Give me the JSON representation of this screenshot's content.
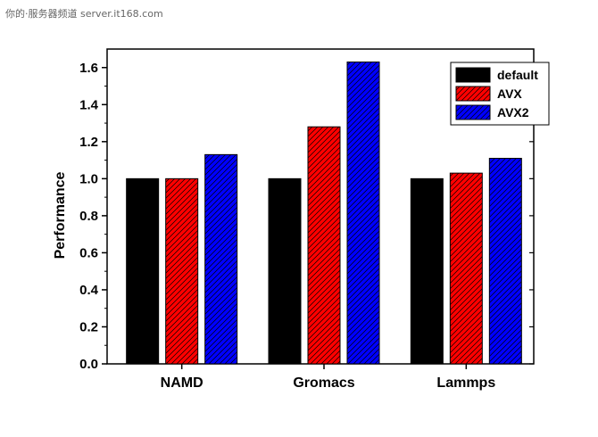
{
  "watermark": "你的·服务器频道 server.it168.com",
  "chart_data": {
    "type": "bar",
    "categories": [
      "NAMD",
      "Gromacs",
      "Lammps"
    ],
    "series": [
      {
        "name": "default",
        "values": [
          1.0,
          1.0,
          1.0
        ],
        "color": "#000000",
        "pattern": "solid"
      },
      {
        "name": "AVX",
        "values": [
          1.0,
          1.28,
          1.03
        ],
        "color": "#ff0000",
        "pattern": "hatched"
      },
      {
        "name": "AVX2",
        "values": [
          1.13,
          1.63,
          1.11
        ],
        "color": "#0000ff",
        "pattern": "hatched"
      }
    ],
    "title": "",
    "xlabel": "",
    "ylabel": "Performance",
    "ylim": [
      0,
      1.7
    ],
    "yticks": [
      "0.0",
      "0.2",
      "0.4",
      "0.6",
      "0.8",
      "1.0",
      "1.2",
      "1.4",
      "1.6"
    ],
    "grid": false,
    "legend_position": "top-right"
  }
}
